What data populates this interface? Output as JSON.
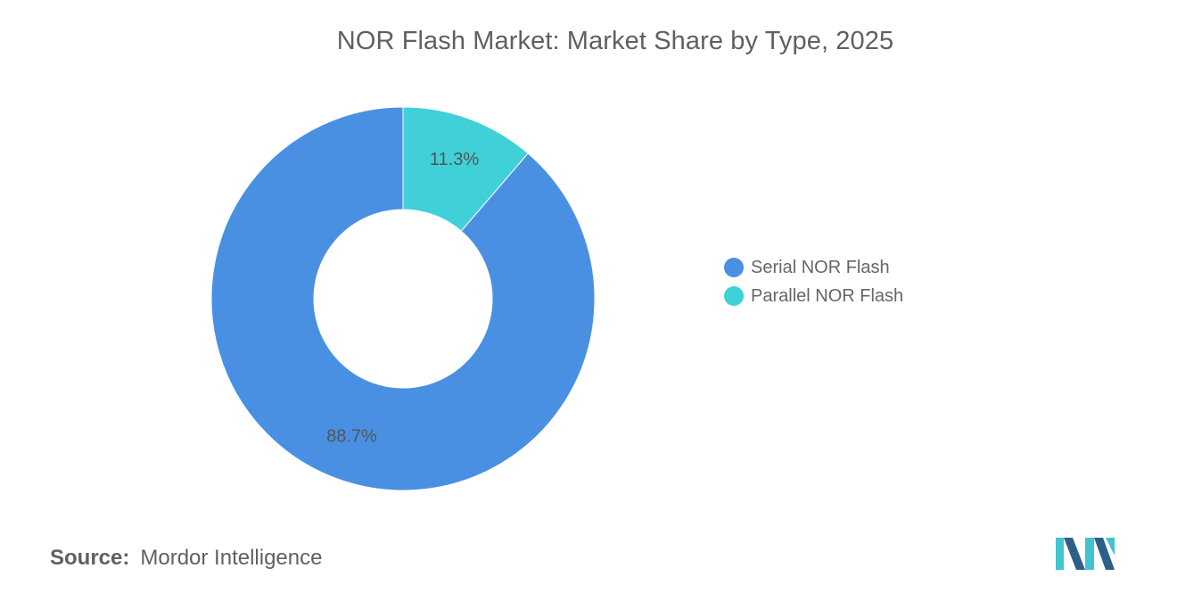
{
  "chart_data": {
    "type": "pie",
    "title": "NOR Flash Market: Market Share by Type, 2025",
    "categories": [
      "Serial NOR Flash",
      "Parallel NOR Flash"
    ],
    "values": [
      88.7,
      11.3
    ],
    "value_labels": [
      "88.7%",
      "11.3%"
    ],
    "colors": [
      "#4A90E2",
      "#40D0D8"
    ],
    "donut": true,
    "legend_position": "right"
  },
  "source": {
    "label": "Source:",
    "text": "Mordor Intelligence"
  },
  "logo": {
    "icon": "mordor-intelligence-logo",
    "colors": [
      "#2C5F8A",
      "#40C4D0"
    ]
  }
}
